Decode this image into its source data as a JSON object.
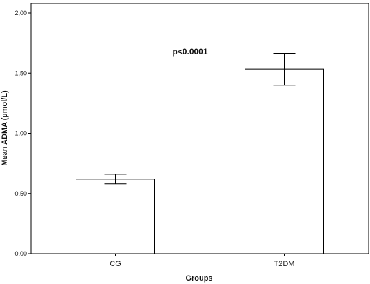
{
  "chart_data": {
    "type": "bar",
    "categories": [
      "CG",
      "T2DM"
    ],
    "values": [
      0.62,
      1.535
    ],
    "error_low": [
      0.58,
      1.4
    ],
    "error_high": [
      0.66,
      1.665
    ],
    "xlabel": "Groups",
    "ylabel": "Mean ADMA (µmol/L)",
    "ylim": [
      0,
      2.0
    ],
    "yticks": [
      0,
      0.5,
      1.0,
      1.5,
      2.0
    ],
    "ytick_labels": [
      "0,00",
      "0,50",
      "1,00",
      "1,50",
      "2,00"
    ],
    "annotation": "p<0.0001",
    "grid": false,
    "bar_fill": "#ffffff",
    "bar_stroke": "#000000"
  }
}
